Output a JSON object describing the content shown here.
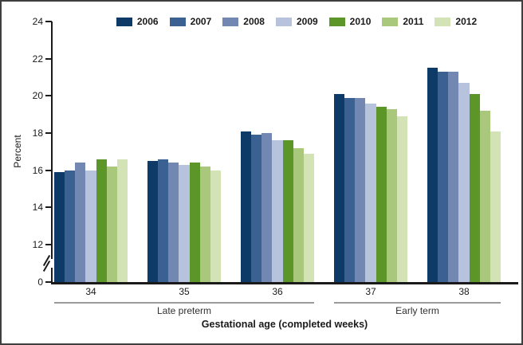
{
  "chart_data": {
    "type": "bar",
    "title": "",
    "categories": [
      "34",
      "35",
      "36",
      "37",
      "38"
    ],
    "series": [
      {
        "name": "2006",
        "color": "#0e3a67",
        "values": [
          15.9,
          16.5,
          18.1,
          20.1,
          21.5
        ]
      },
      {
        "name": "2007",
        "color": "#3a6191",
        "values": [
          16.0,
          16.6,
          17.9,
          19.9,
          21.3
        ]
      },
      {
        "name": "2008",
        "color": "#7287b2",
        "values": [
          16.4,
          16.4,
          18.0,
          19.9,
          21.3
        ]
      },
      {
        "name": "2009",
        "color": "#b7c2dc",
        "values": [
          16.0,
          16.3,
          17.6,
          19.6,
          20.7
        ]
      },
      {
        "name": "2010",
        "color": "#5d9628",
        "values": [
          16.6,
          16.4,
          17.6,
          19.4,
          20.1
        ]
      },
      {
        "name": "2011",
        "color": "#a9c87c",
        "values": [
          16.2,
          16.2,
          17.2,
          19.3,
          19.2
        ]
      },
      {
        "name": "2012",
        "color": "#d3e3b5",
        "values": [
          16.6,
          16.0,
          16.9,
          18.9,
          18.1
        ]
      }
    ],
    "ylabel": "Percent",
    "xlabel": "Gestational age (completed weeks)",
    "y_ticks": [
      24,
      22,
      20,
      18,
      16,
      14,
      12,
      0
    ],
    "y_axis_break": true,
    "ylim": [
      0,
      24
    ],
    "grid": false,
    "legend_position": "top",
    "group_brackets": [
      {
        "label": "Late preterm",
        "from": 0,
        "to": 2
      },
      {
        "label": "Early term",
        "from": 3,
        "to": 4
      }
    ]
  }
}
